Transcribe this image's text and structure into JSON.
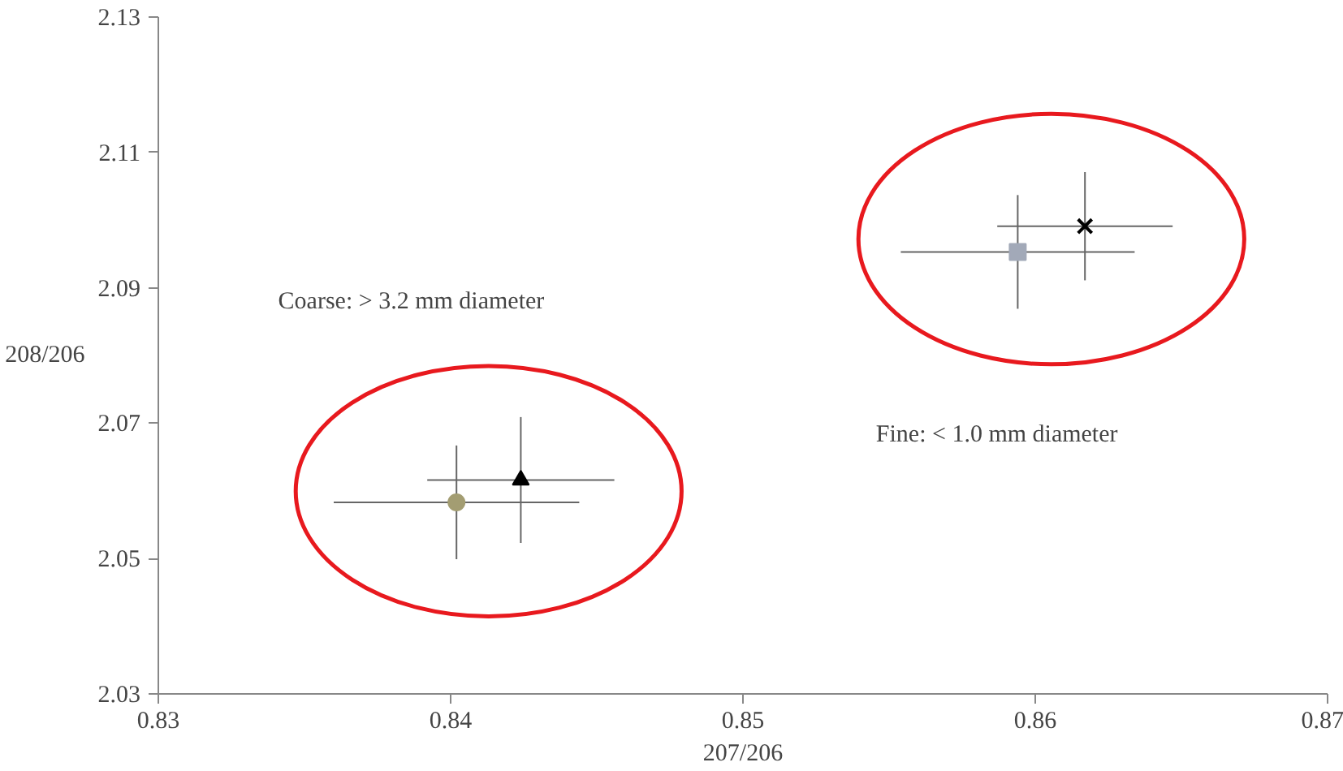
{
  "chart_data": {
    "type": "scatter",
    "xlabel": "207/206",
    "ylabel": "208/206",
    "xlim": [
      0.83,
      0.87
    ],
    "xticks": [
      0.83,
      0.84,
      0.85,
      0.86,
      0.87
    ],
    "ylim": [
      2.03,
      2.13
    ],
    "yticks": [
      2.03,
      2.05,
      2.07,
      2.09,
      2.11,
      2.13
    ],
    "grid": false,
    "series": [
      {
        "color": "#a39d72",
        "marker": "circle",
        "x": [
          0.8402
        ],
        "values": [
          2.0583
        ],
        "errors": [
          0.0084
        ],
        "xerrors": [
          0.0042
        ]
      },
      {
        "color": "#000000",
        "marker": "triangle",
        "x": [
          0.8424
        ],
        "values": [
          2.0616
        ],
        "errors": [
          0.0093
        ],
        "xerrors": [
          0.0032
        ]
      },
      {
        "color": "#a2a9b8",
        "marker": "square",
        "x": [
          0.8594
        ],
        "values": [
          2.0953
        ],
        "errors": [
          0.0084
        ],
        "xerrors": [
          0.004
        ]
      },
      {
        "color": "#000000",
        "marker": "cross",
        "x": [
          0.8617
        ],
        "values": [
          2.0991
        ],
        "errors": [
          0.008
        ],
        "xerrors": [
          0.003
        ]
      }
    ],
    "annotations": [
      "Coarse: > 3.2 mm diameter",
      "Fine: < 1.0 mm diameter"
    ]
  }
}
